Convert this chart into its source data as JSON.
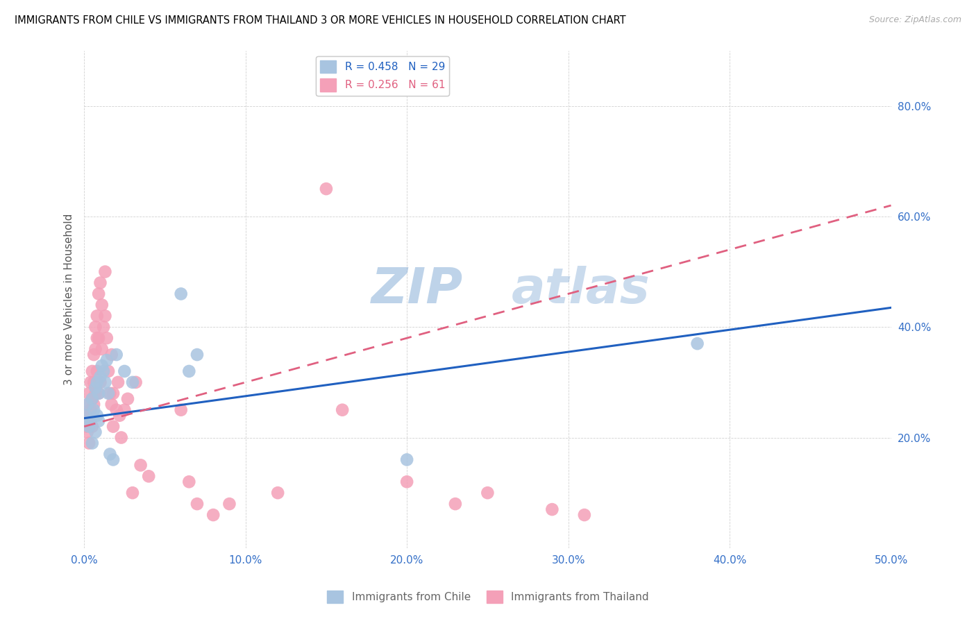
{
  "title": "IMMIGRANTS FROM CHILE VS IMMIGRANTS FROM THAILAND 3 OR MORE VEHICLES IN HOUSEHOLD CORRELATION CHART",
  "source": "Source: ZipAtlas.com",
  "ylabel": "3 or more Vehicles in Household",
  "xlim": [
    0.0,
    0.5
  ],
  "ylim": [
    0.0,
    0.9
  ],
  "xticks": [
    0.0,
    0.1,
    0.2,
    0.3,
    0.4,
    0.5
  ],
  "yticks": [
    0.2,
    0.4,
    0.6,
    0.8
  ],
  "xticklabels": [
    "0.0%",
    "10.0%",
    "20.0%",
    "30.0%",
    "40.0%",
    "50.0%"
  ],
  "yticklabels": [
    "20.0%",
    "40.0%",
    "60.0%",
    "80.0%"
  ],
  "chile_R": 0.458,
  "chile_N": 29,
  "thailand_R": 0.256,
  "thailand_N": 61,
  "chile_color": "#a8c4e0",
  "thailand_color": "#f4a0b8",
  "chile_line_color": "#2060c0",
  "thailand_line_color": "#e06080",
  "watermark_zip": "ZIP",
  "watermark_atlas": "atlas",
  "legend_labels": [
    "Immigrants from Chile",
    "Immigrants from Thailand"
  ],
  "chile_scatter_x": [
    0.001,
    0.002,
    0.003,
    0.004,
    0.005,
    0.005,
    0.006,
    0.007,
    0.007,
    0.008,
    0.008,
    0.009,
    0.009,
    0.01,
    0.011,
    0.012,
    0.013,
    0.014,
    0.015,
    0.016,
    0.018,
    0.02,
    0.025,
    0.03,
    0.06,
    0.065,
    0.07,
    0.2,
    0.38
  ],
  "chile_scatter_y": [
    0.24,
    0.26,
    0.22,
    0.23,
    0.19,
    0.27,
    0.25,
    0.29,
    0.21,
    0.3,
    0.24,
    0.28,
    0.23,
    0.31,
    0.33,
    0.32,
    0.3,
    0.34,
    0.28,
    0.17,
    0.16,
    0.35,
    0.32,
    0.3,
    0.46,
    0.32,
    0.35,
    0.16,
    0.37
  ],
  "thailand_scatter_x": [
    0.001,
    0.001,
    0.002,
    0.002,
    0.003,
    0.003,
    0.003,
    0.004,
    0.004,
    0.005,
    0.005,
    0.005,
    0.006,
    0.006,
    0.006,
    0.007,
    0.007,
    0.007,
    0.008,
    0.008,
    0.008,
    0.009,
    0.009,
    0.009,
    0.01,
    0.01,
    0.011,
    0.011,
    0.012,
    0.013,
    0.013,
    0.014,
    0.015,
    0.016,
    0.017,
    0.017,
    0.018,
    0.018,
    0.02,
    0.021,
    0.022,
    0.023,
    0.025,
    0.027,
    0.03,
    0.032,
    0.035,
    0.04,
    0.06,
    0.065,
    0.07,
    0.08,
    0.09,
    0.12,
    0.15,
    0.16,
    0.2,
    0.23,
    0.25,
    0.29,
    0.31
  ],
  "thailand_scatter_y": [
    0.24,
    0.22,
    0.26,
    0.21,
    0.28,
    0.23,
    0.19,
    0.3,
    0.25,
    0.32,
    0.27,
    0.22,
    0.35,
    0.3,
    0.26,
    0.4,
    0.36,
    0.28,
    0.42,
    0.38,
    0.32,
    0.46,
    0.38,
    0.28,
    0.48,
    0.3,
    0.44,
    0.36,
    0.4,
    0.5,
    0.42,
    0.38,
    0.32,
    0.28,
    0.35,
    0.26,
    0.22,
    0.28,
    0.25,
    0.3,
    0.24,
    0.2,
    0.25,
    0.27,
    0.1,
    0.3,
    0.15,
    0.13,
    0.25,
    0.12,
    0.08,
    0.06,
    0.08,
    0.1,
    0.65,
    0.25,
    0.12,
    0.08,
    0.1,
    0.07,
    0.06
  ],
  "chile_line_x0": 0.0,
  "chile_line_y0": 0.235,
  "chile_line_x1": 0.5,
  "chile_line_y1": 0.435,
  "thailand_line_x0": 0.0,
  "thailand_line_y0": 0.22,
  "thailand_line_x1": 0.5,
  "thailand_line_y1": 0.62
}
